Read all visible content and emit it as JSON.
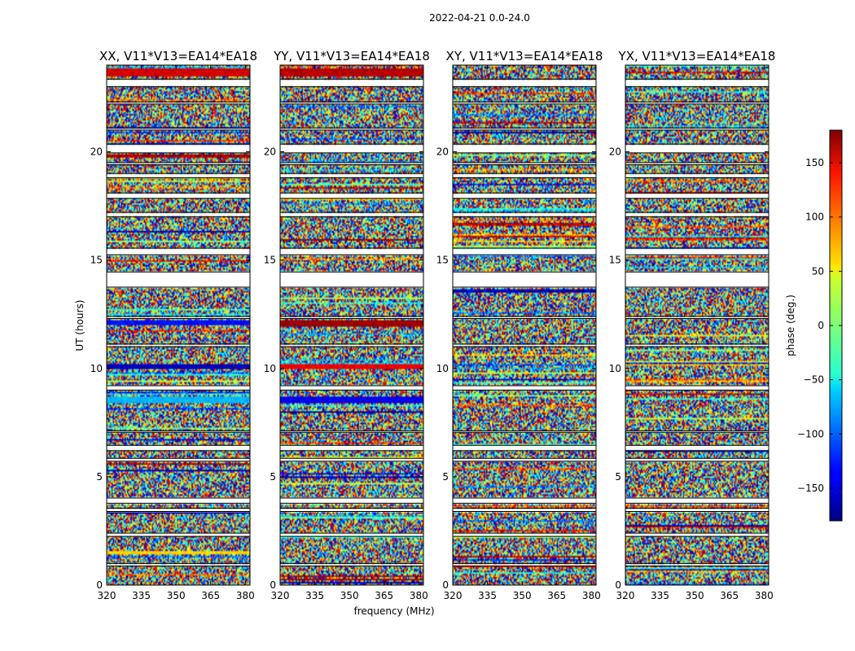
{
  "chart_data": {
    "type": "heatmap",
    "title": "2022-04-21 0.0-24.0",
    "xlabel": "frequency (MHz)",
    "ylabel": "UT (hours)",
    "xlim": [
      320,
      382
    ],
    "ylim": [
      0,
      24
    ],
    "xticks": [
      "320",
      "335",
      "350",
      "365",
      "380"
    ],
    "xtick_values": [
      320,
      335,
      350,
      365,
      380
    ],
    "yticks": [
      "0",
      "5",
      "10",
      "15",
      "20"
    ],
    "ytick_values": [
      0,
      5,
      10,
      15,
      20
    ],
    "panels": [
      {
        "name": "xx",
        "title": "XX, V11*V13=EA14*EA18"
      },
      {
        "name": "yy",
        "title": "YY, V11*V13=EA14*EA18"
      },
      {
        "name": "xy",
        "title": "XY, V11*V13=EA14*EA18"
      },
      {
        "name": "yx",
        "title": "YX, V11*V13=EA14*EA18"
      }
    ],
    "colorbar": {
      "label": "phase (deg.)",
      "range": [
        -180,
        180
      ],
      "ticks": [
        "−150",
        "−100",
        "−50",
        "0",
        "50",
        "100",
        "150"
      ],
      "tick_values": [
        -150,
        -100,
        -50,
        0,
        50,
        100,
        150
      ],
      "colormap": "jet"
    },
    "blank_intervals_hours": [
      [
        0.88,
        1.0
      ],
      [
        2.25,
        2.4
      ],
      [
        3.4,
        3.55
      ],
      [
        3.78,
        4.02
      ],
      [
        5.72,
        5.85
      ],
      [
        6.2,
        6.45
      ],
      [
        7.05,
        7.12
      ],
      [
        9.0,
        9.2
      ],
      [
        11.0,
        11.12
      ],
      [
        12.3,
        12.4
      ],
      [
        13.75,
        14.45
      ],
      [
        15.25,
        15.55
      ],
      [
        17.0,
        17.2
      ],
      [
        17.85,
        18.1
      ],
      [
        18.8,
        19.0
      ],
      [
        19.4,
        19.5
      ],
      [
        19.95,
        20.35
      ],
      [
        21.0,
        21.1
      ],
      [
        22.2,
        22.3
      ],
      [
        23.0,
        23.35
      ]
    ],
    "coherent_bands_hours": [
      {
        "panel": "xx",
        "start": 23.5,
        "end": 23.85,
        "phase": 150
      },
      {
        "panel": "xx",
        "start": 12.0,
        "end": 12.2,
        "phase": -130
      },
      {
        "panel": "xx",
        "start": 10.0,
        "end": 10.2,
        "phase": -160
      },
      {
        "panel": "xx",
        "start": 8.4,
        "end": 8.7,
        "phase": -70
      },
      {
        "panel": "xx",
        "start": 1.4,
        "end": 1.6,
        "phase": 60
      },
      {
        "panel": "yy",
        "start": 23.5,
        "end": 23.85,
        "phase": 160
      },
      {
        "panel": "yy",
        "start": 11.9,
        "end": 12.2,
        "phase": 170
      },
      {
        "panel": "yy",
        "start": 10.0,
        "end": 10.2,
        "phase": 140
      },
      {
        "panel": "yy",
        "start": 8.4,
        "end": 8.7,
        "phase": -140
      }
    ]
  }
}
